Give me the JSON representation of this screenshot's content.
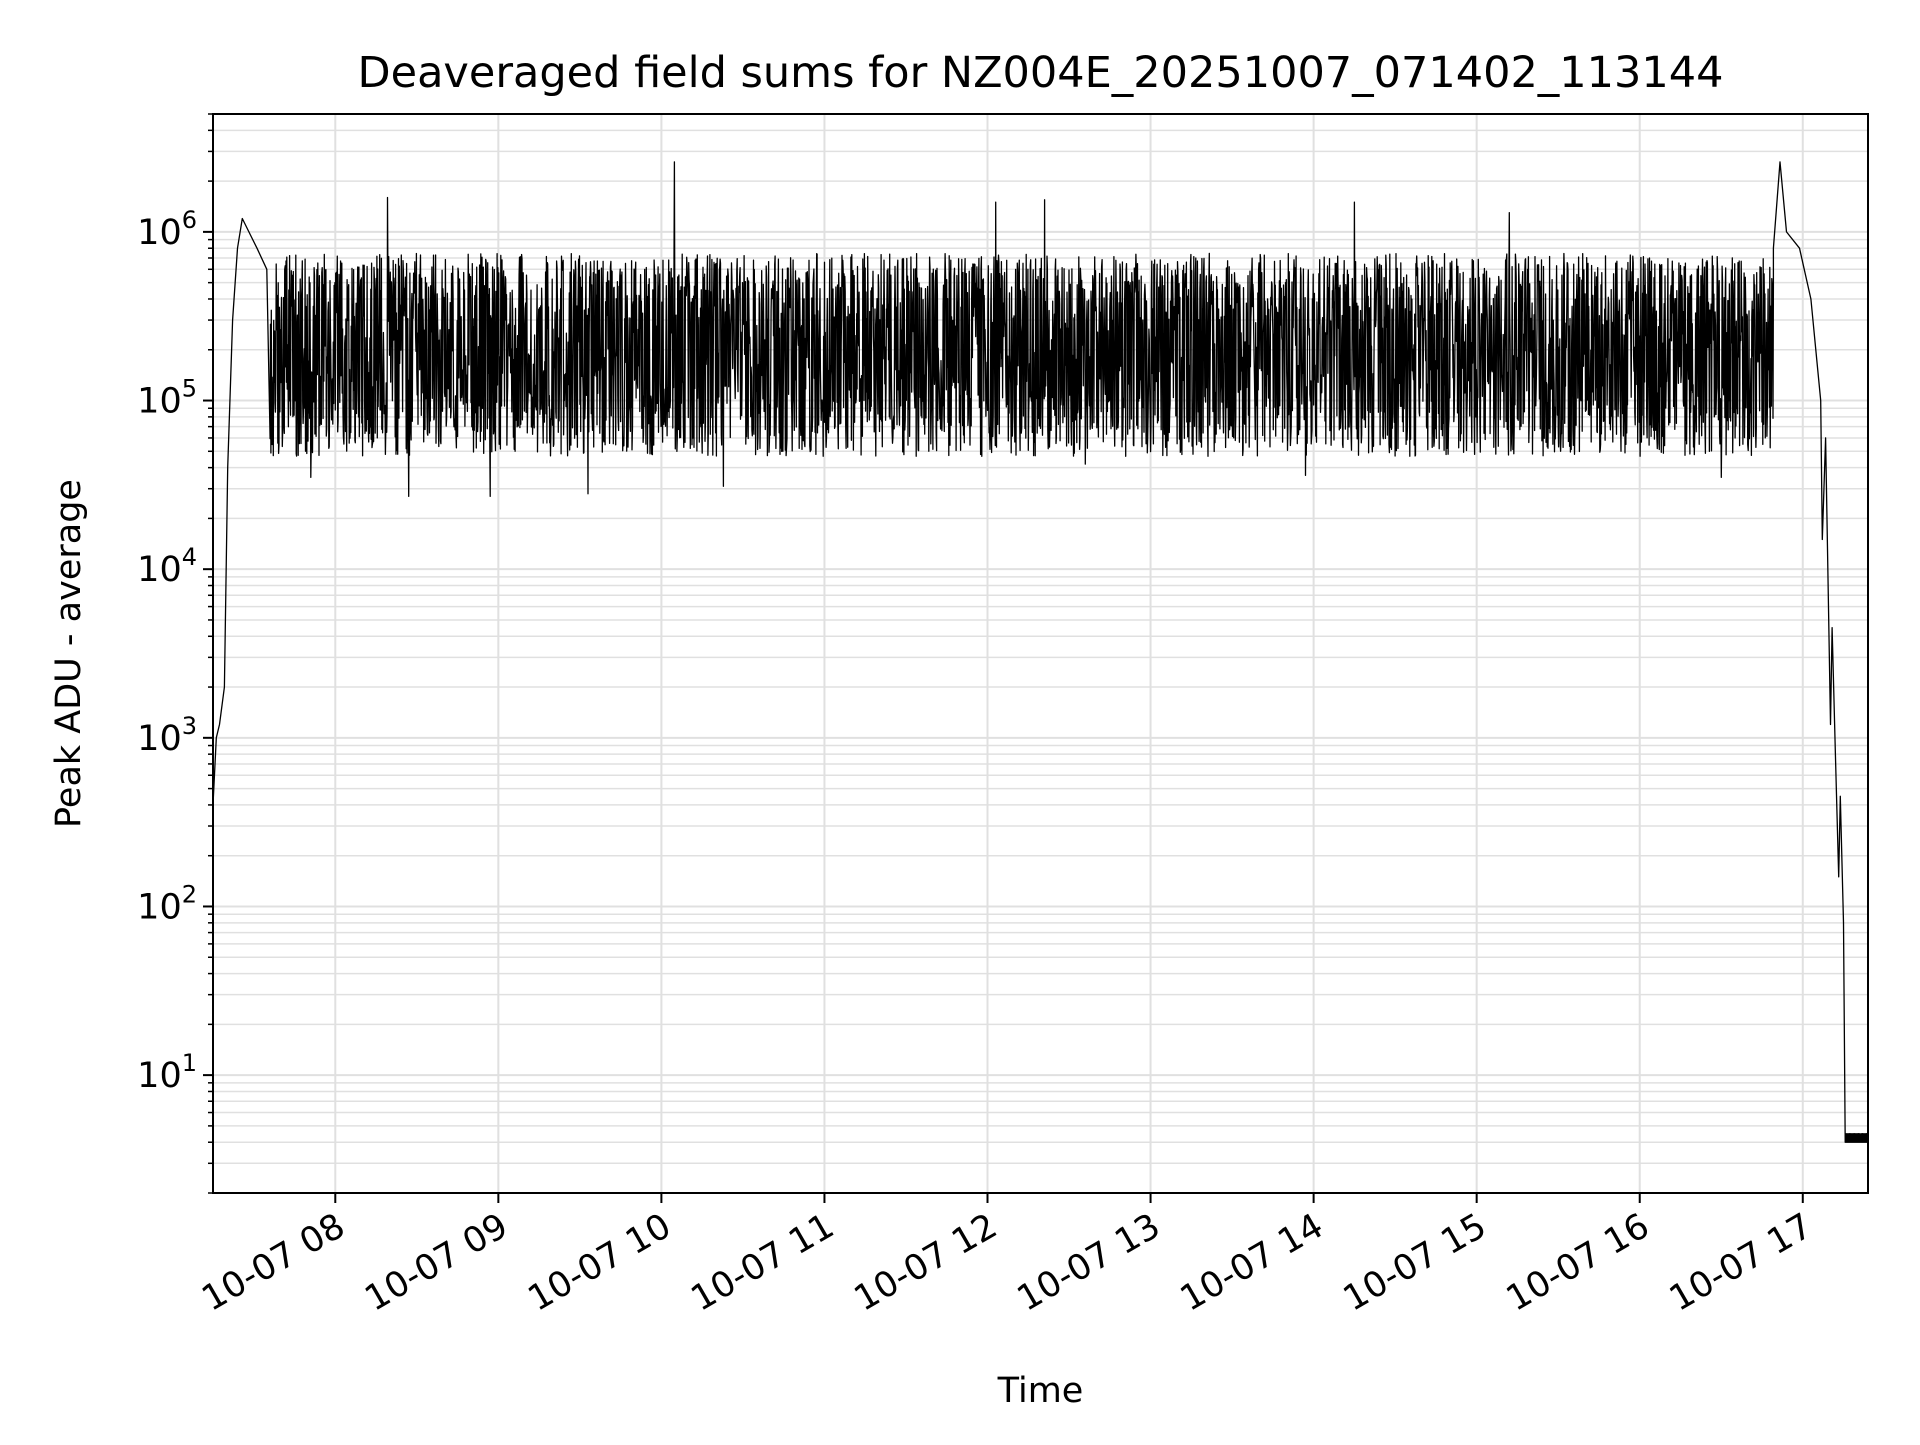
{
  "chart_data": {
    "type": "line",
    "title": "Deaveraged field sums for NZ004E_20251007_071402_113144",
    "xlabel": "Time",
    "ylabel": "Peak ADU - average",
    "yscale": "log",
    "ylim": [
      2,
      5000000
    ],
    "xlim_hours": [
      7.25,
      17.4
    ],
    "grid": true,
    "grid_minor": true,
    "line_color": "#000000",
    "grid_color": "#e0e0e0",
    "x_ticks": [
      {
        "hour": 8,
        "label": "10-07 08"
      },
      {
        "hour": 9,
        "label": "10-07 09"
      },
      {
        "hour": 10,
        "label": "10-07 10"
      },
      {
        "hour": 11,
        "label": "10-07 11"
      },
      {
        "hour": 12,
        "label": "10-07 12"
      },
      {
        "hour": 13,
        "label": "10-07 13"
      },
      {
        "hour": 14,
        "label": "10-07 14"
      },
      {
        "hour": 15,
        "label": "10-07 15"
      },
      {
        "hour": 16,
        "label": "10-07 16"
      },
      {
        "hour": 17,
        "label": "10-07 17"
      }
    ],
    "y_ticks": [
      {
        "value": 10,
        "base": "10",
        "exp": "1"
      },
      {
        "value": 100,
        "base": "10",
        "exp": "2"
      },
      {
        "value": 1000,
        "base": "10",
        "exp": "3"
      },
      {
        "value": 10000,
        "base": "10",
        "exp": "4"
      },
      {
        "value": 100000,
        "base": "10",
        "exp": "5"
      },
      {
        "value": 1000000,
        "base": "10",
        "exp": "6"
      }
    ],
    "envelope": [
      {
        "t": 7.25,
        "y": 400
      },
      {
        "t": 7.27,
        "y": 1000
      },
      {
        "t": 7.29,
        "y": 1200
      },
      {
        "t": 7.32,
        "y": 2000
      },
      {
        "t": 7.34,
        "y": 40000
      },
      {
        "t": 7.37,
        "y": 300000
      },
      {
        "t": 7.4,
        "y": 800000
      },
      {
        "t": 7.43,
        "y": 1200000
      },
      {
        "t": 7.47,
        "y": 1000000
      },
      {
        "t": 7.52,
        "y": 800000
      },
      {
        "t": 7.58,
        "y": 600000
      }
    ],
    "noisy_band": {
      "t_start": 7.6,
      "t_end": 16.82,
      "median": 200000,
      "low": 50000,
      "high": 700000
    },
    "spikes": [
      {
        "t": 8.32,
        "y": 1600000
      },
      {
        "t": 10.08,
        "y": 2600000
      },
      {
        "t": 12.05,
        "y": 1500000
      },
      {
        "t": 12.35,
        "y": 1550000
      },
      {
        "t": 14.25,
        "y": 1500000
      },
      {
        "t": 15.2,
        "y": 1300000
      },
      {
        "t": 7.85,
        "y": 35000
      },
      {
        "t": 8.45,
        "y": 27000
      },
      {
        "t": 8.95,
        "y": 27000
      },
      {
        "t": 9.55,
        "y": 28000
      },
      {
        "t": 10.38,
        "y": 31000
      },
      {
        "t": 12.6,
        "y": 42000
      },
      {
        "t": 13.95,
        "y": 36000
      },
      {
        "t": 16.5,
        "y": 35000
      }
    ],
    "tail": [
      {
        "t": 16.82,
        "y": 800000
      },
      {
        "t": 16.86,
        "y": 2600000
      },
      {
        "t": 16.9,
        "y": 1000000
      },
      {
        "t": 16.98,
        "y": 800000
      },
      {
        "t": 17.05,
        "y": 400000
      },
      {
        "t": 17.08,
        "y": 200000
      },
      {
        "t": 17.11,
        "y": 100000
      },
      {
        "t": 17.12,
        "y": 15000
      },
      {
        "t": 17.14,
        "y": 60000
      },
      {
        "t": 17.17,
        "y": 1200
      },
      {
        "t": 17.18,
        "y": 4500
      },
      {
        "t": 17.2,
        "y": 800
      },
      {
        "t": 17.22,
        "y": 150
      },
      {
        "t": 17.23,
        "y": 450
      },
      {
        "t": 17.25,
        "y": 80
      },
      {
        "t": 17.26,
        "y": 4
      },
      {
        "t": 17.4,
        "y": 4
      }
    ]
  }
}
